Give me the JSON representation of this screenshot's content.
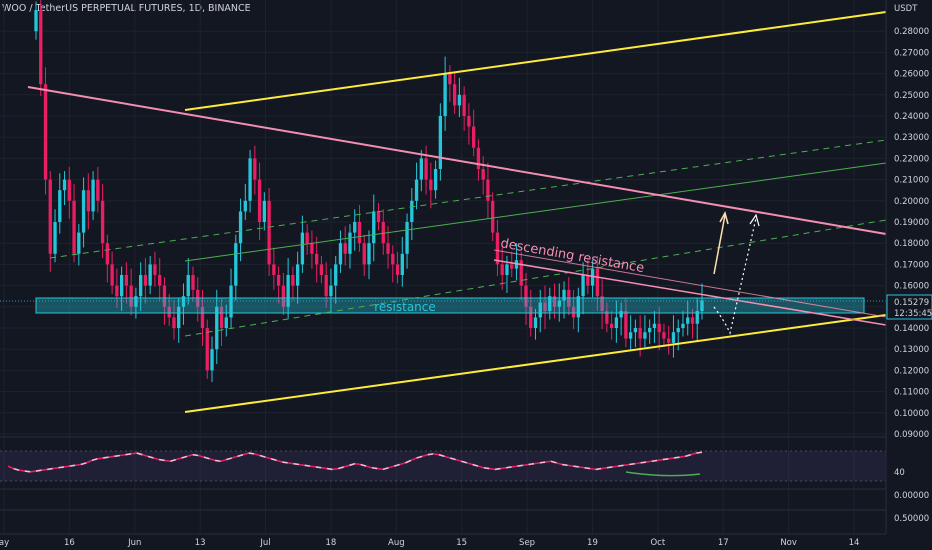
{
  "header": {
    "title": "WOO / TetherUS PERPETUAL FUTURES, 1D, BINANCE",
    "currency": "USDT"
  },
  "colors": {
    "background": "#131722",
    "candle_up": "#26c6da",
    "candle_down": "#e91e63",
    "channel_yellow": "#ffeb3b",
    "resistance_pink": "#f48fb1",
    "resistance_zone": "#26c6da",
    "mid_green": "#4caf50",
    "rsi_line": "#e91e63"
  },
  "chart_data": {
    "type": "candlestick",
    "y_axis": {
      "min": 0.09,
      "max": 0.29,
      "ticks": [
        "0.28000",
        "0.27000",
        "0.26000",
        "0.25000",
        "0.24000",
        "0.23000",
        "0.22000",
        "0.21000",
        "0.20000",
        "0.19000",
        "0.18000",
        "0.17000",
        "0.16000",
        "0.15000",
        "0.14000",
        "0.13000",
        "0.12000",
        "0.11000",
        "0.10000",
        "0.09000"
      ]
    },
    "x_axis_labels": [
      "ay",
      "16",
      "Jun",
      "13",
      "Jul",
      "18",
      "Aug",
      "15",
      "Sep",
      "19",
      "Oct",
      "17",
      "Nov",
      "14"
    ],
    "last_price": "0.15279",
    "countdown": "12:35:45",
    "annotations": {
      "zone_label": "resistance",
      "line_label": "descending resistance"
    },
    "closes": [
      0.29,
      0.255,
      0.21,
      0.175,
      0.19,
      0.205,
      0.21,
      0.2,
      0.175,
      0.185,
      0.205,
      0.195,
      0.21,
      0.2,
      0.18,
      0.17,
      0.16,
      0.155,
      0.165,
      0.16,
      0.15,
      0.155,
      0.165,
      0.16,
      0.17,
      0.165,
      0.16,
      0.15,
      0.145,
      0.14,
      0.15,
      0.155,
      0.165,
      0.158,
      0.15,
      0.14,
      0.12,
      0.13,
      0.15,
      0.14,
      0.145,
      0.16,
      0.18,
      0.195,
      0.2,
      0.22,
      0.21,
      0.19,
      0.2,
      0.17,
      0.165,
      0.16,
      0.15,
      0.165,
      0.16,
      0.17,
      0.185,
      0.18,
      0.175,
      0.17,
      0.165,
      0.155,
      0.16,
      0.17,
      0.18,
      0.175,
      0.185,
      0.19,
      0.18,
      0.17,
      0.18,
      0.195,
      0.19,
      0.18,
      0.175,
      0.17,
      0.165,
      0.175,
      0.19,
      0.2,
      0.21,
      0.22,
      0.21,
      0.205,
      0.215,
      0.24,
      0.26,
      0.255,
      0.245,
      0.25,
      0.24,
      0.235,
      0.225,
      0.215,
      0.21,
      0.2,
      0.185,
      0.17,
      0.165,
      0.17,
      0.168,
      0.172,
      0.16,
      0.15,
      0.14,
      0.145,
      0.152,
      0.148,
      0.155,
      0.15,
      0.153,
      0.158,
      0.15,
      0.145,
      0.155,
      0.165,
      0.16,
      0.168,
      0.155,
      0.148,
      0.142,
      0.14,
      0.145,
      0.148,
      0.135,
      0.138,
      0.14,
      0.135,
      0.138,
      0.14,
      0.142,
      0.138,
      0.135,
      0.133,
      0.138,
      0.14,
      0.142,
      0.145,
      0.142,
      0.148,
      0.153
    ],
    "rsi": {
      "levels": [
        70,
        40,
        30
      ],
      "tick_label": "40",
      "values": [
        48,
        45,
        43,
        42,
        41,
        42,
        43,
        44,
        45,
        46,
        47,
        48,
        49,
        50,
        52,
        55,
        57,
        58,
        59,
        60,
        61,
        62,
        63,
        64,
        62,
        60,
        58,
        56,
        55,
        54,
        56,
        58,
        60,
        62,
        61,
        59,
        57,
        55,
        54,
        56,
        58,
        60,
        62,
        64,
        63,
        61,
        59,
        57,
        55,
        53,
        52,
        51,
        50,
        49,
        48,
        47,
        46,
        45,
        44,
        45,
        47,
        49,
        51,
        50,
        48,
        46,
        45,
        44,
        46,
        48,
        50,
        52,
        55,
        58,
        60,
        62,
        63,
        62,
        60,
        58,
        56,
        54,
        52,
        50,
        48,
        46,
        45,
        44,
        45,
        46,
        47,
        48,
        49,
        50,
        51,
        52,
        53,
        54,
        52,
        50,
        49,
        48,
        47,
        46,
        45,
        44,
        45,
        46,
        47,
        48,
        49,
        50,
        51,
        52,
        53,
        54,
        55,
        56,
        57,
        58,
        59,
        60,
        62,
        64,
        65
      ]
    },
    "bottom_panel_ticks": [
      "0.00000",
      "0.50000"
    ]
  }
}
